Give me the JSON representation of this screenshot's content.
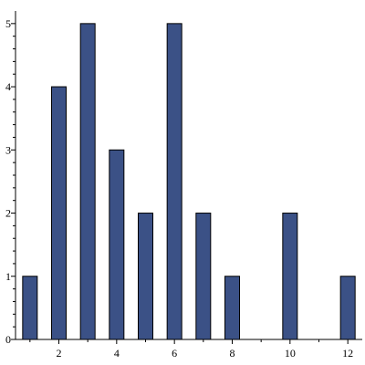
{
  "chart_data": {
    "type": "bar",
    "title": "",
    "xlabel": "",
    "ylabel": "",
    "x": [
      1,
      2,
      3,
      4,
      5,
      6,
      7,
      8,
      10,
      12
    ],
    "values": [
      1,
      4,
      5,
      3,
      2,
      5,
      2,
      1,
      2,
      1
    ],
    "xlim": [
      0.5,
      12.5
    ],
    "ylim": [
      0,
      5.2
    ],
    "x_major_ticks": [
      2,
      4,
      6,
      8,
      10,
      12
    ],
    "x_minor_ticks": [
      1,
      3,
      5,
      7,
      9,
      11
    ],
    "y_major_ticks": [
      0,
      1,
      2,
      3,
      4,
      5
    ],
    "y_ticks_per_unit": 5,
    "x_tick_labels": [
      "2",
      "4",
      "6",
      "8",
      "10",
      "12"
    ],
    "y_tick_labels": [
      "0",
      "1",
      "2",
      "3",
      "4",
      "5"
    ],
    "bar_color": "#3B5186",
    "bar_edge_color": "#000000",
    "grid": false,
    "legend": "none"
  }
}
